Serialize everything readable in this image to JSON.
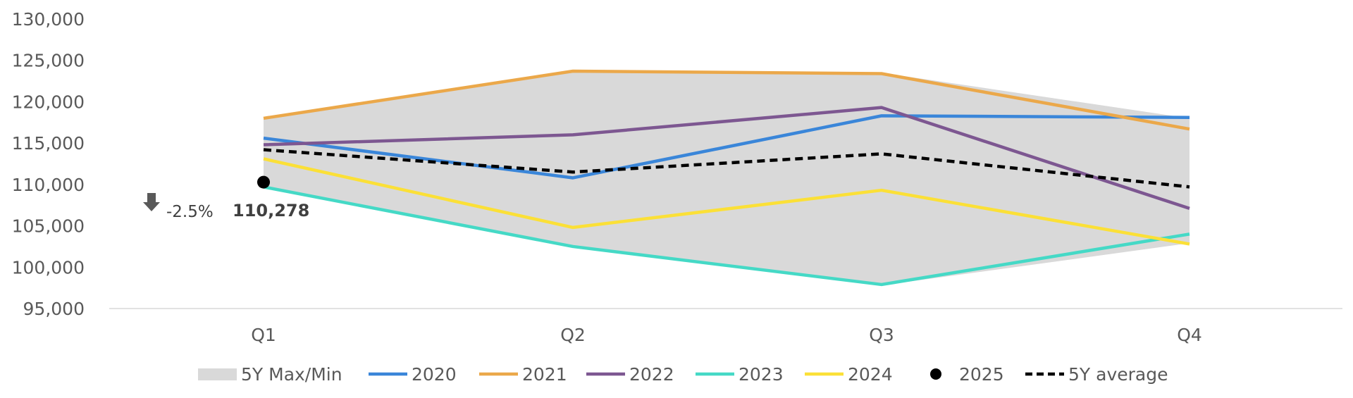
{
  "chart_data": {
    "type": "line",
    "categories": [
      "Q1",
      "Q2",
      "Q3",
      "Q4"
    ],
    "ylim": [
      95000,
      130000
    ],
    "yticks": [
      95000,
      100000,
      105000,
      110000,
      115000,
      120000,
      125000,
      130000
    ],
    "ytick_labels": [
      "95,000",
      "100,000",
      "105,000",
      "110,000",
      "115,000",
      "120,000",
      "125,000",
      "130,000"
    ],
    "title": "",
    "xlabel": "",
    "ylabel": "",
    "grid": false,
    "legend_position": "bottom",
    "band": {
      "name": "5Y Max/Min",
      "color": "#d9d9d9",
      "upper": [
        118000,
        123700,
        123500,
        118000
      ],
      "lower": [
        109600,
        102600,
        97800,
        102900
      ]
    },
    "series": [
      {
        "name": "2020",
        "color": "#3a86d9",
        "values": [
          115600,
          110800,
          118300,
          118100
        ]
      },
      {
        "name": "2021",
        "color": "#eba84a",
        "values": [
          118000,
          123700,
          123400,
          116700
        ]
      },
      {
        "name": "2022",
        "color": "#7d5791",
        "values": [
          114800,
          116000,
          119300,
          107100
        ]
      },
      {
        "name": "2023",
        "color": "#45d9c6",
        "values": [
          109700,
          102500,
          97900,
          104000
        ]
      },
      {
        "name": "2024",
        "color": "#fbe037",
        "values": [
          113100,
          104800,
          109300,
          102800
        ]
      }
    ],
    "current": {
      "name": "2025",
      "color": "#000000",
      "values": [
        110278
      ]
    },
    "average": {
      "name": "5Y average",
      "color": "#000000",
      "values": [
        114200,
        111500,
        113700,
        109700
      ]
    },
    "annotation": {
      "arrow_icon": "arrow-down-icon",
      "arrow_color": "#595959",
      "change_text": "-2.5%",
      "value_text": "110,278"
    }
  }
}
